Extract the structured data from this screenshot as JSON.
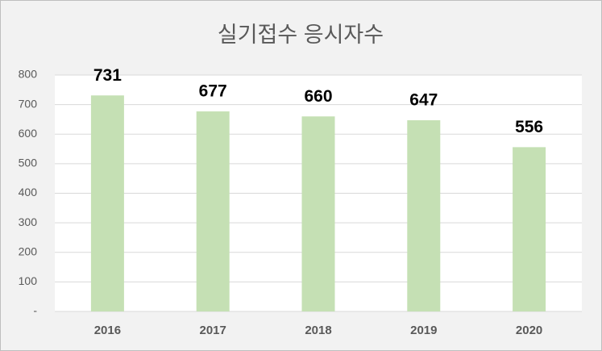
{
  "chart_data": {
    "type": "bar",
    "title": "실기접수 응시자수",
    "categories": [
      "2016",
      "2017",
      "2018",
      "2019",
      "2020"
    ],
    "values": [
      731,
      677,
      660,
      647,
      556
    ],
    "color": "#c5e0b4",
    "ylim": [
      0,
      800
    ],
    "yticks": [
      {
        "value": 0,
        "label": "-"
      },
      100,
      200,
      300,
      400,
      500,
      600,
      700,
      800
    ],
    "grid": true
  }
}
